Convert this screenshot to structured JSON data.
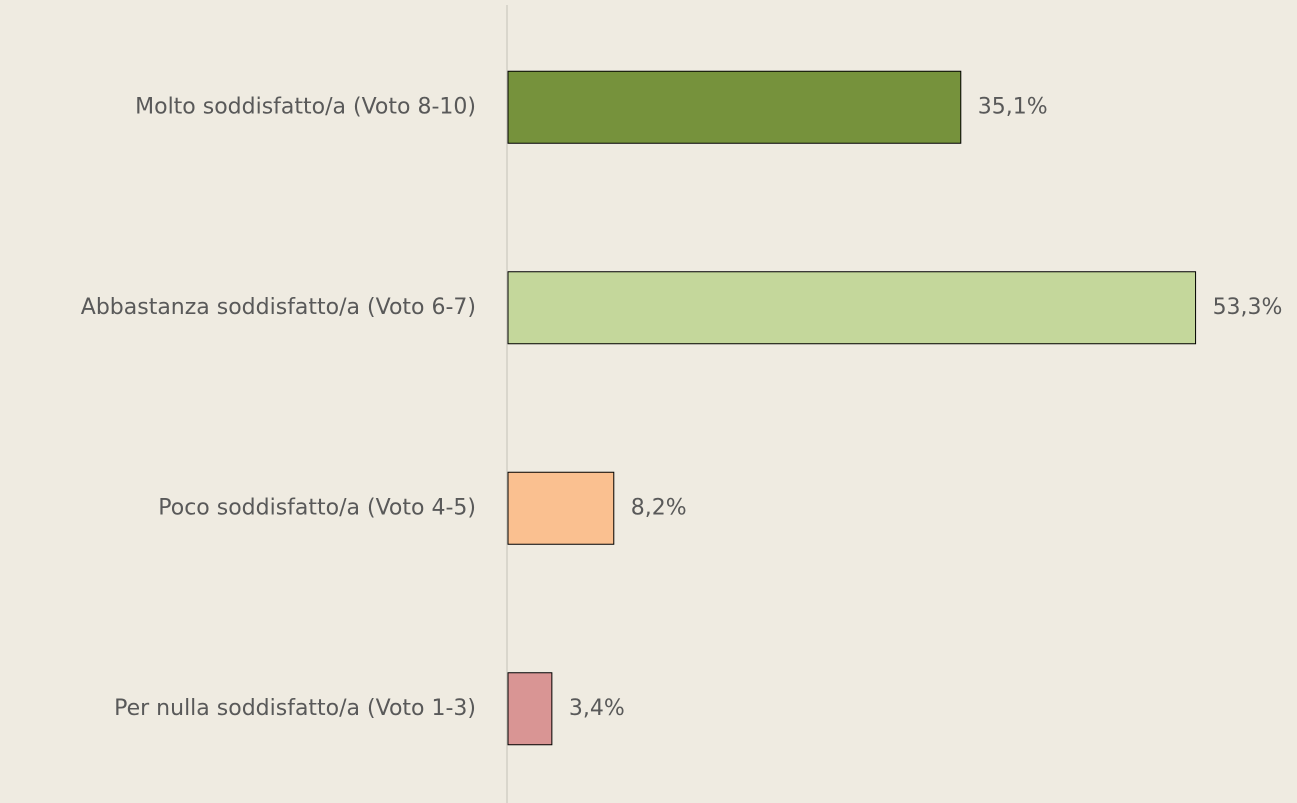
{
  "chart_data": {
    "type": "barh",
    "categories": [
      "Molto soddisfatto/a (Voto 8-10)",
      "Abbastanza soddisfatto/a (Voto 6-7)",
      "Poco soddisfatto/a (Voto 4-5)",
      "Per nulla soddisfatto/a (Voto 1-3)"
    ],
    "values": [
      35.1,
      53.3,
      8.2,
      3.4
    ],
    "value_labels": [
      "35,1%",
      "53,3%",
      "8,2%",
      "3,4%"
    ],
    "colors": [
      "#76923c",
      "#c4d79b",
      "#fac090",
      "#d99594"
    ]
  }
}
